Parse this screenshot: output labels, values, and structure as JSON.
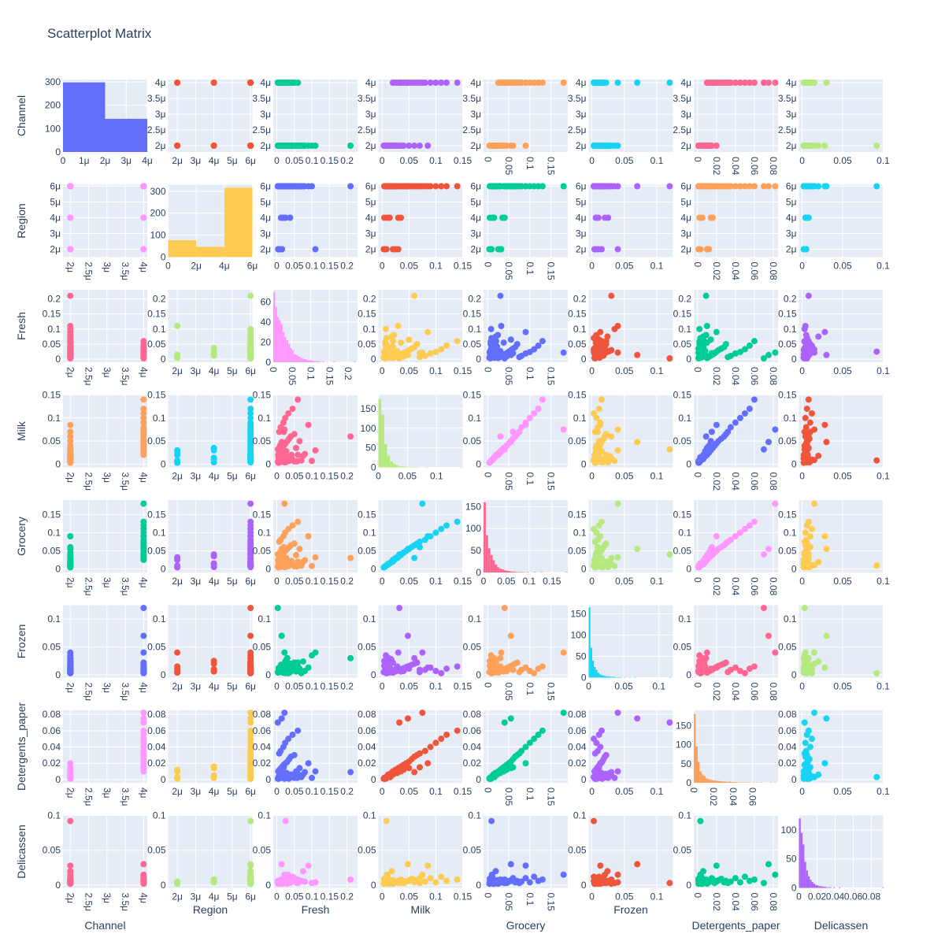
{
  "chart_data": {
    "type": "scatter",
    "title": "Scatterplot Matrix",
    "dimensions": [
      "Channel",
      "Region",
      "Fresh",
      "Milk",
      "Grocery",
      "Frozen",
      "Detergents_paper",
      "Delicassen"
    ],
    "axes": {
      "Channel": {
        "range": [
          1.8,
          4.1
        ],
        "ticks": [
          2,
          2.5,
          3,
          3.5,
          4
        ],
        "tick_labels": [
          "2μ",
          "2.5μ",
          "3μ",
          "3.5μ",
          "4μ"
        ]
      },
      "Region": {
        "range": [
          1.5,
          6.1
        ],
        "ticks": [
          2,
          3,
          4,
          5,
          6
        ],
        "tick_labels": [
          "2μ",
          "3μ",
          "4μ",
          "5μ",
          "6μ"
        ]
      },
      "Fresh": {
        "range": [
          -0.01,
          0.23
        ],
        "ticks": [
          0,
          0.05,
          0.1,
          0.15,
          0.2
        ],
        "tick_labels": [
          "0",
          "0.05",
          "0.1",
          "0.15",
          "0.2"
        ]
      },
      "Milk": {
        "range": [
          -0.007,
          0.15
        ],
        "ticks": [
          0,
          0.05,
          0.1,
          0.15
        ],
        "tick_labels": [
          "0",
          "0.05",
          "0.1",
          "0.15"
        ]
      },
      "Grocery": {
        "range": [
          -0.01,
          0.19
        ],
        "ticks": [
          0,
          0.05,
          0.1,
          0.15
        ],
        "tick_labels": [
          "0",
          "0.05",
          "0.1",
          "0.15"
        ]
      },
      "Frozen": {
        "range": [
          -0.005,
          0.125
        ],
        "ticks": [
          0,
          0.05,
          0.1
        ],
        "tick_labels": [
          "0",
          "0.05",
          "0.1"
        ]
      },
      "Detergents_paper": {
        "range": [
          -0.004,
          0.085
        ],
        "ticks": [
          0,
          0.02,
          0.04,
          0.06,
          0.08
        ],
        "tick_labels": [
          "0",
          "0.02",
          "0.04",
          "0.06",
          "0.08"
        ]
      },
      "Delicassen": {
        "range": [
          -0.004,
          0.1
        ],
        "ticks": [
          0,
          0.05,
          0.1
        ],
        "tick_labels": [
          "0",
          "0.05",
          "0.1"
        ]
      }
    },
    "histograms": {
      "Channel": {
        "bins": [
          [
            0,
            2,
            298
          ],
          [
            2,
            4,
            142
          ]
        ],
        "x_range": [
          0,
          4
        ],
        "y_range": [
          0,
          310
        ],
        "x_ticks": [
          0,
          1,
          2,
          3,
          4
        ],
        "x_tick_labels": [
          "0",
          "1μ",
          "2μ",
          "3μ",
          "4μ"
        ],
        "y_ticks": [
          0,
          100,
          200,
          300
        ],
        "y_tick_labels": [
          "0",
          "100",
          "200",
          "300"
        ]
      },
      "Region": {
        "bins": [
          [
            0,
            2,
            77
          ],
          [
            2,
            4,
            47
          ],
          [
            4,
            6,
            316
          ]
        ],
        "x_range": [
          0,
          6
        ],
        "y_range": [
          0,
          330
        ],
        "x_ticks": [
          0,
          2,
          4,
          6
        ],
        "x_tick_labels": [
          "0",
          "2μ",
          "4μ",
          "6μ"
        ],
        "y_ticks": [
          0,
          100,
          200,
          300
        ],
        "y_tick_labels": [
          "0",
          "100",
          "200",
          "300"
        ]
      },
      "Fresh": {
        "bin_start": 0,
        "bin_width": 0.005,
        "counts": [
          70,
          55,
          45,
          42,
          38,
          30,
          25,
          22,
          18,
          14,
          12,
          8,
          7,
          6,
          5,
          4,
          3,
          3,
          2,
          2,
          2,
          1,
          1,
          1,
          1,
          0,
          1,
          0,
          0,
          0,
          0,
          0,
          1,
          0,
          0,
          0,
          0,
          0,
          0,
          0,
          0,
          0,
          0,
          1
        ],
        "x_range": [
          0,
          0.225
        ],
        "y_range": [
          0,
          72
        ],
        "x_ticks": [
          0,
          0.05,
          0.1,
          0.15,
          0.2
        ],
        "x_tick_labels": [
          "0",
          "0.05",
          "0.1",
          "0.15",
          "0.2"
        ],
        "y_ticks": [
          0,
          20,
          40,
          60
        ],
        "y_tick_labels": [
          "0",
          "20",
          "40",
          "60"
        ]
      },
      "Milk": {
        "bin_start": 0,
        "bin_width": 0.005,
        "counts": [
          175,
          135,
          60,
          30,
          15,
          9,
          5,
          3,
          2,
          2,
          1,
          1,
          1,
          1,
          0,
          0,
          1,
          0,
          0,
          0,
          0,
          0,
          0,
          0,
          0,
          0,
          0,
          0,
          1
        ],
        "x_range": [
          0,
          0.145
        ],
        "y_range": [
          0,
          185
        ],
        "x_ticks": [
          0,
          0.05,
          0.1
        ],
        "x_tick_labels": [
          "0",
          "0.05",
          "0.1"
        ],
        "y_ticks": [
          0,
          50,
          100,
          150
        ],
        "y_tick_labels": [
          "0",
          "50",
          "100",
          "150"
        ]
      },
      "Grocery": {
        "bin_start": 0,
        "bin_width": 0.005,
        "counts": [
          160,
          85,
          55,
          40,
          28,
          18,
          12,
          9,
          7,
          5,
          4,
          3,
          2,
          2,
          1,
          1,
          1,
          1,
          0,
          1,
          0,
          0,
          1,
          0,
          0,
          1,
          0,
          0,
          0,
          0,
          0,
          0,
          0,
          0,
          0,
          0,
          1
        ],
        "x_range": [
          0,
          0.185
        ],
        "y_range": [
          0,
          165
        ],
        "x_ticks": [
          0,
          0.05,
          0.1,
          0.15
        ],
        "x_tick_labels": [
          "0",
          "0.05",
          "0.1",
          "0.15"
        ],
        "y_ticks": [
          0,
          50,
          100,
          150
        ],
        "y_tick_labels": [
          "0",
          "50",
          "100",
          "150"
        ]
      },
      "Frozen": {
        "bin_start": 0,
        "bin_width": 0.0025,
        "counts": [
          165,
          70,
          40,
          25,
          18,
          12,
          8,
          6,
          5,
          4,
          3,
          3,
          2,
          2,
          2,
          1,
          1,
          1,
          1,
          0,
          1,
          0,
          0,
          1,
          0,
          0,
          1,
          0,
          0,
          0,
          0,
          0,
          0,
          0,
          0,
          0,
          0,
          0,
          0,
          0,
          0,
          0,
          0,
          0,
          0,
          0,
          1
        ],
        "x_range": [
          0,
          0.12
        ],
        "y_range": [
          0,
          170
        ],
        "x_ticks": [
          0,
          0.05,
          0.1
        ],
        "x_tick_labels": [
          "0",
          "0.05",
          "0.1"
        ],
        "y_ticks": [
          0,
          50,
          100,
          150
        ],
        "y_tick_labels": [
          "0",
          "50",
          "100",
          "150"
        ]
      },
      "Detergents_paper": {
        "bin_start": 0,
        "bin_width": 0.002,
        "counts": [
          180,
          95,
          55,
          30,
          22,
          18,
          12,
          10,
          8,
          7,
          6,
          5,
          5,
          4,
          4,
          3,
          3,
          2,
          3,
          2,
          2,
          2,
          1,
          1,
          1,
          1,
          1,
          1,
          1,
          0,
          1,
          0,
          1,
          0,
          1,
          0,
          0,
          0,
          0,
          1,
          0,
          1
        ],
        "x_range": [
          0,
          0.086
        ],
        "y_range": [
          0,
          190
        ],
        "x_ticks": [
          0,
          0.02,
          0.04,
          0.06
        ],
        "x_tick_labels": [
          "0",
          "0.02",
          "0.04",
          "0.06"
        ],
        "y_ticks": [
          0,
          50,
          100,
          150
        ],
        "y_tick_labels": [
          "0",
          "50",
          "100",
          "150"
        ]
      },
      "Delicassen": {
        "bin_start": 0,
        "bin_width": 0.002,
        "counts": [
          120,
          95,
          75,
          45,
          30,
          20,
          14,
          10,
          7,
          5,
          4,
          3,
          3,
          2,
          2,
          1,
          1,
          1,
          0,
          1,
          0,
          0,
          1,
          0,
          0,
          0,
          0,
          0,
          0,
          0,
          0,
          0,
          0,
          0,
          0,
          0,
          0,
          0,
          0,
          0,
          0,
          0,
          0,
          0,
          0,
          0,
          1
        ],
        "x_range": [
          0,
          0.093
        ],
        "y_range": [
          0,
          125
        ],
        "x_ticks": [
          0,
          0.02,
          0.04,
          0.06,
          0.08
        ],
        "x_tick_labels": [
          "0",
          "0.02",
          "0.04",
          "0.06",
          "0.08"
        ],
        "y_ticks": [
          0,
          50,
          100
        ],
        "y_tick_labels": [
          "0",
          "50",
          "100"
        ]
      }
    },
    "x_tick_rotated": [
      "Channel",
      "Grocery",
      "Detergents_paper"
    ],
    "hist_x_tick_rotated": [
      "Fresh",
      "Detergents_paper"
    ],
    "cell_colors": [
      [
        "#636efa",
        "#EF553B",
        "#00cc96",
        "#ab63fa",
        "#FFA15A",
        "#19d3f3",
        "#FF6692",
        "#B6E880"
      ],
      [
        "#FF97FF",
        "#FECB52",
        "#636efa",
        "#EF553B",
        "#00cc96",
        "#ab63fa",
        "#FFA15A",
        "#19d3f3"
      ],
      [
        "#FF6692",
        "#B6E880",
        "#FF97FF",
        "#FECB52",
        "#636efa",
        "#EF553B",
        "#00cc96",
        "#ab63fa"
      ],
      [
        "#FFA15A",
        "#19d3f3",
        "#FF6692",
        "#B6E880",
        "#FF97FF",
        "#FECB52",
        "#636efa",
        "#EF553B"
      ],
      [
        "#00cc96",
        "#ab63fa",
        "#FFA15A",
        "#19d3f3",
        "#FF6692",
        "#B6E880",
        "#FF97FF",
        "#FECB52"
      ],
      [
        "#636efa",
        "#EF553B",
        "#00cc96",
        "#ab63fa",
        "#FFA15A",
        "#19d3f3",
        "#FF6692",
        "#B6E880"
      ],
      [
        "#FF97FF",
        "#FECB52",
        "#636efa",
        "#EF553B",
        "#00cc96",
        "#ab63fa",
        "#FFA15A",
        "#19d3f3"
      ],
      [
        "#FF6692",
        "#B6E880",
        "#FF97FF",
        "#FECB52",
        "#636efa",
        "#EF553B",
        "#00cc96",
        "#ab63fa"
      ]
    ],
    "points": {
      "Channel": [
        2,
        2,
        2,
        2,
        2,
        2,
        2,
        2,
        2,
        2,
        2,
        2,
        2,
        2,
        2,
        2,
        2,
        2,
        2,
        2,
        2,
        2,
        2,
        2,
        2,
        2,
        2,
        2,
        2,
        2,
        2,
        2,
        2,
        2,
        2,
        2,
        2,
        2,
        2,
        2,
        4,
        4,
        4,
        4,
        4,
        4,
        4,
        4,
        4,
        4,
        4,
        4,
        4,
        4,
        4,
        4,
        4,
        4,
        4,
        4
      ],
      "Region": [
        2,
        2,
        2,
        4,
        4,
        6,
        6,
        6,
        6,
        6,
        6,
        6,
        6,
        6,
        6,
        6,
        6,
        6,
        6,
        6,
        6,
        6,
        6,
        2,
        4,
        6,
        6,
        6,
        6,
        6,
        6,
        6,
        6,
        6,
        6,
        6,
        6,
        6,
        6,
        6,
        2,
        2,
        4,
        4,
        6,
        6,
        6,
        6,
        6,
        6,
        6,
        6,
        6,
        6,
        6,
        6,
        6,
        6,
        6,
        6
      ],
      "Fresh": [
        0.005,
        0.01,
        0.015,
        0.02,
        0.025,
        0.03,
        0.035,
        0.005,
        0.012,
        0.018,
        0.04,
        0.05,
        0.06,
        0.07,
        0.008,
        0.022,
        0.028,
        0.045,
        0.08,
        0.1,
        0.003,
        0.016,
        0.032,
        0.11,
        0.038,
        0.058,
        0.075,
        0.015,
        0.025,
        0.21,
        0.006,
        0.009,
        0.014,
        0.02,
        0.027,
        0.036,
        0.042,
        0.055,
        0.065,
        0.09,
        0.004,
        0.008,
        0.012,
        0.016,
        0.02,
        0.025,
        0.03,
        0.035,
        0.04,
        0.05,
        0.007,
        0.011,
        0.019,
        0.024,
        0.033,
        0.045,
        0.06,
        0.003,
        0.014,
        0.022
      ],
      "Milk": [
        0.003,
        0.006,
        0.008,
        0.01,
        0.004,
        0.012,
        0.007,
        0.015,
        0.005,
        0.009,
        0.011,
        0.006,
        0.02,
        0.008,
        0.013,
        0.004,
        0.017,
        0.01,
        0.022,
        0.007,
        0.005,
        0.012,
        0.009,
        0.03,
        0.014,
        0.006,
        0.018,
        0.025,
        0.008,
        0.06,
        0.01,
        0.04,
        0.015,
        0.07,
        0.028,
        0.012,
        0.02,
        0.035,
        0.05,
        0.085,
        0.02,
        0.025,
        0.03,
        0.035,
        0.04,
        0.045,
        0.05,
        0.055,
        0.06,
        0.065,
        0.07,
        0.08,
        0.09,
        0.1,
        0.11,
        0.12,
        0.14,
        0.032,
        0.048,
        0.075
      ],
      "Grocery": [
        0.004,
        0.007,
        0.009,
        0.012,
        0.005,
        0.014,
        0.008,
        0.016,
        0.006,
        0.01,
        0.013,
        0.007,
        0.02,
        0.009,
        0.015,
        0.005,
        0.018,
        0.011,
        0.024,
        0.008,
        0.006,
        0.013,
        0.01,
        0.032,
        0.015,
        0.007,
        0.019,
        0.028,
        0.009,
        0.03,
        0.012,
        0.045,
        0.017,
        0.06,
        0.03,
        0.014,
        0.022,
        0.038,
        0.055,
        0.09,
        0.025,
        0.03,
        0.035,
        0.04,
        0.045,
        0.05,
        0.055,
        0.06,
        0.065,
        0.07,
        0.075,
        0.08,
        0.09,
        0.1,
        0.11,
        0.12,
        0.13,
        0.04,
        0.055,
        0.18
      ],
      "Frozen": [
        0.005,
        0.01,
        0.015,
        0.02,
        0.025,
        0.03,
        0.008,
        0.012,
        0.018,
        0.004,
        0.006,
        0.014,
        0.022,
        0.003,
        0.009,
        0.016,
        0.028,
        0.011,
        0.007,
        0.035,
        0.005,
        0.013,
        0.02,
        0.04,
        0.006,
        0.017,
        0.024,
        0.01,
        0.003,
        0.03,
        0.012,
        0.007,
        0.005,
        0.009,
        0.015,
        0.004,
        0.008,
        0.006,
        0.011,
        0.013,
        0.004,
        0.006,
        0.008,
        0.01,
        0.012,
        0.014,
        0.016,
        0.018,
        0.02,
        0.022,
        0.005,
        0.009,
        0.013,
        0.007,
        0.003,
        0.011,
        0.015,
        0.12,
        0.07,
        0.04
      ],
      "Detergents_paper": [
        0.001,
        0.002,
        0.003,
        0.004,
        0.002,
        0.005,
        0.001,
        0.003,
        0.002,
        0.004,
        0.006,
        0.002,
        0.007,
        0.003,
        0.005,
        0.001,
        0.008,
        0.004,
        0.009,
        0.002,
        0.001,
        0.004,
        0.003,
        0.01,
        0.005,
        0.002,
        0.006,
        0.008,
        0.003,
        0.009,
        0.004,
        0.012,
        0.005,
        0.015,
        0.008,
        0.004,
        0.006,
        0.01,
        0.014,
        0.02,
        0.01,
        0.012,
        0.014,
        0.016,
        0.018,
        0.02,
        0.022,
        0.025,
        0.028,
        0.03,
        0.032,
        0.035,
        0.04,
        0.045,
        0.05,
        0.055,
        0.06,
        0.07,
        0.075,
        0.082
      ],
      "Delicassen": [
        0.002,
        0.003,
        0.005,
        0.004,
        0.006,
        0.002,
        0.007,
        0.003,
        0.008,
        0.004,
        0.005,
        0.01,
        0.003,
        0.006,
        0.002,
        0.009,
        0.004,
        0.012,
        0.005,
        0.003,
        0.006,
        0.002,
        0.015,
        0.004,
        0.007,
        0.003,
        0.02,
        0.005,
        0.092,
        0.008,
        0.003,
        0.006,
        0.004,
        0.01,
        0.005,
        0.003,
        0.007,
        0.004,
        0.006,
        0.028,
        0.002,
        0.004,
        0.006,
        0.008,
        0.003,
        0.005,
        0.007,
        0.009,
        0.004,
        0.006,
        0.003,
        0.005,
        0.01,
        0.004,
        0.012,
        0.006,
        0.008,
        0.003,
        0.03,
        0.015
      ]
    }
  }
}
